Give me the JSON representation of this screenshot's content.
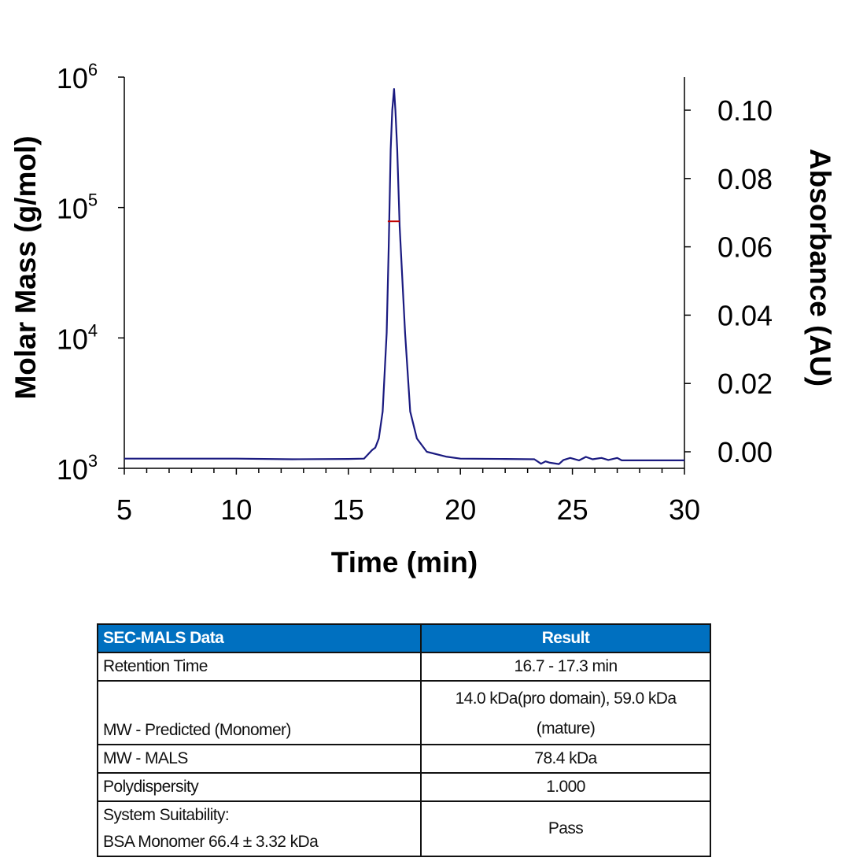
{
  "chart_data": {
    "type": "line",
    "xlabel": "Time (min)",
    "ylabel_left": "Molar Mass (g/mol)",
    "ylabel_right": "Absorbance (AU)",
    "xlim": [
      5,
      30
    ],
    "x_ticks": [
      "5",
      "10",
      "15",
      "20",
      "25",
      "30"
    ],
    "x_tick_values": [
      5,
      10,
      15,
      20,
      25,
      30
    ],
    "y_left_scale": "log",
    "y_left_lim": [
      1000,
      1000000
    ],
    "y_left_ticks": [
      {
        "base": "10",
        "exp": "3",
        "value": 1000
      },
      {
        "base": "10",
        "exp": "4",
        "value": 10000
      },
      {
        "base": "10",
        "exp": "5",
        "value": 100000
      },
      {
        "base": "10",
        "exp": "6",
        "value": 1000000
      }
    ],
    "y_right_lim": [
      -0.005,
      0.11
    ],
    "y_right_ticks": [
      "0.00",
      "0.02",
      "0.04",
      "0.06",
      "0.08",
      "0.10"
    ],
    "y_right_tick_values": [
      0,
      0.02,
      0.04,
      0.06,
      0.08,
      0.1
    ],
    "grid": false,
    "series": [
      {
        "axis": "right",
        "color": "#1a1a80",
        "x": [
          5,
          10,
          12.5,
          15.0,
          15.7,
          16.06,
          16.2,
          16.36,
          16.53,
          16.71,
          16.8,
          16.89,
          16.96,
          17.04,
          17.1,
          17.18,
          17.29,
          17.53,
          17.76,
          18.06,
          18.5,
          19.35,
          20,
          22.0,
          23.3,
          23.6,
          23.8,
          24.0,
          24.4,
          24.6,
          24.9,
          25.3,
          25.6,
          25.9,
          26.3,
          26.6,
          27.0,
          27.2,
          28,
          30
        ],
        "y": [
          -0.002,
          -0.002,
          -0.0022,
          -0.0021,
          -0.002,
          0.0005,
          0.0012,
          0.0039,
          0.0118,
          0.0348,
          0.06,
          0.0885,
          0.1,
          0.1062,
          0.1,
          0.0885,
          0.066,
          0.0348,
          0.0118,
          0.0039,
          0.0,
          -0.0014,
          -0.002,
          -0.0021,
          -0.0022,
          -0.0035,
          -0.0028,
          -0.0032,
          -0.0036,
          -0.0024,
          -0.0018,
          -0.0025,
          -0.0015,
          -0.0022,
          -0.0018,
          -0.0024,
          -0.0018,
          -0.0025,
          -0.0025,
          -0.0025
        ]
      },
      {
        "axis": "left",
        "color": "#c00000",
        "x": [
          16.76,
          17.29
        ],
        "y": [
          78400,
          78400
        ]
      }
    ]
  },
  "table": {
    "headers": [
      "SEC-MALS Data",
      "Result"
    ],
    "rows": [
      {
        "label": [
          "Retention Time"
        ],
        "value": [
          "16.7 - 17.3 min"
        ]
      },
      {
        "label": [
          "MW - Predicted (Monomer)"
        ],
        "value": [
          "14.0 kDa(pro domain), 59.0 kDa",
          "(mature)"
        ]
      },
      {
        "label": [
          "MW - MALS"
        ],
        "value": [
          "78.4 kDa"
        ]
      },
      {
        "label": [
          "Polydispersity"
        ],
        "value": [
          "1.000"
        ]
      },
      {
        "label": [
          "System Suitability:",
          "BSA Monomer 66.4 ± 3.32 kDa"
        ],
        "value": [
          "Pass"
        ]
      }
    ],
    "header_color": "#0070c0"
  }
}
